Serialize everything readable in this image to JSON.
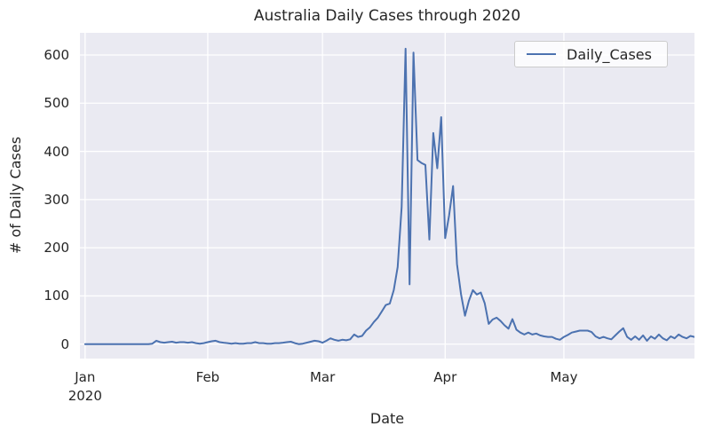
{
  "colors": {
    "line": "#4C72B0",
    "plot_background": "#EAEAF2",
    "grid": "#FFFFFF",
    "text": "#262626",
    "legend_border": "#CCCCCC",
    "legend_background": "rgba(255,255,255,0.8)"
  },
  "legend": {
    "label": "Daily_Cases",
    "position": "upper right"
  },
  "chart_data": {
    "type": "line",
    "title": "Australia Daily Cases through 2020",
    "xlabel": "Date",
    "ylabel": "# of Daily Cases",
    "grid": true,
    "legend_position": "upper right",
    "y_ticks": [
      0,
      100,
      200,
      300,
      400,
      500,
      600
    ],
    "ylim": [
      -30,
      646
    ],
    "xlim_days": [
      -1.3,
      154
    ],
    "x_ticks": [
      {
        "day": 0,
        "label": "Jan",
        "sublabel": "2020"
      },
      {
        "day": 31,
        "label": "Feb",
        "sublabel": ""
      },
      {
        "day": 60,
        "label": "Mar",
        "sublabel": ""
      },
      {
        "day": 91,
        "label": "Apr",
        "sublabel": ""
      },
      {
        "day": 121,
        "label": "May",
        "sublabel": ""
      }
    ],
    "series": [
      {
        "name": "Daily_Cases",
        "color": "#4C72B0",
        "start": "Jan 1 2020",
        "values": [
          0,
          0,
          0,
          0,
          0,
          0,
          0,
          0,
          0,
          0,
          0,
          0,
          0,
          0,
          0,
          0,
          0,
          1,
          7,
          4,
          3,
          4,
          5,
          3,
          4,
          4,
          3,
          4,
          2,
          1,
          2,
          4,
          6,
          7,
          4,
          3,
          2,
          1,
          2,
          1,
          1,
          2,
          2,
          4,
          2,
          2,
          1,
          1,
          2,
          2,
          3,
          4,
          5,
          2,
          0,
          1,
          3,
          5,
          7,
          6,
          3,
          7,
          12,
          9,
          7,
          9,
          8,
          10,
          20,
          15,
          17,
          28,
          35,
          46,
          55,
          68,
          81,
          84,
          112,
          160,
          285,
          613,
          124,
          605,
          382,
          376,
          372,
          217,
          438,
          365,
          471,
          220,
          267,
          328,
          166,
          104,
          59,
          90,
          112,
          103,
          107,
          85,
          42,
          51,
          55,
          48,
          39,
          32,
          52,
          30,
          24,
          20,
          24,
          20,
          22,
          18,
          16,
          15,
          15,
          11,
          9,
          15,
          19,
          24,
          26,
          28,
          28,
          28,
          25,
          16,
          12,
          15,
          12,
          10,
          18,
          26,
          33,
          15,
          9,
          16,
          9,
          18,
          7,
          16,
          11,
          20,
          12,
          8,
          16,
          12,
          20,
          15,
          12,
          17,
          15
        ]
      }
    ]
  }
}
